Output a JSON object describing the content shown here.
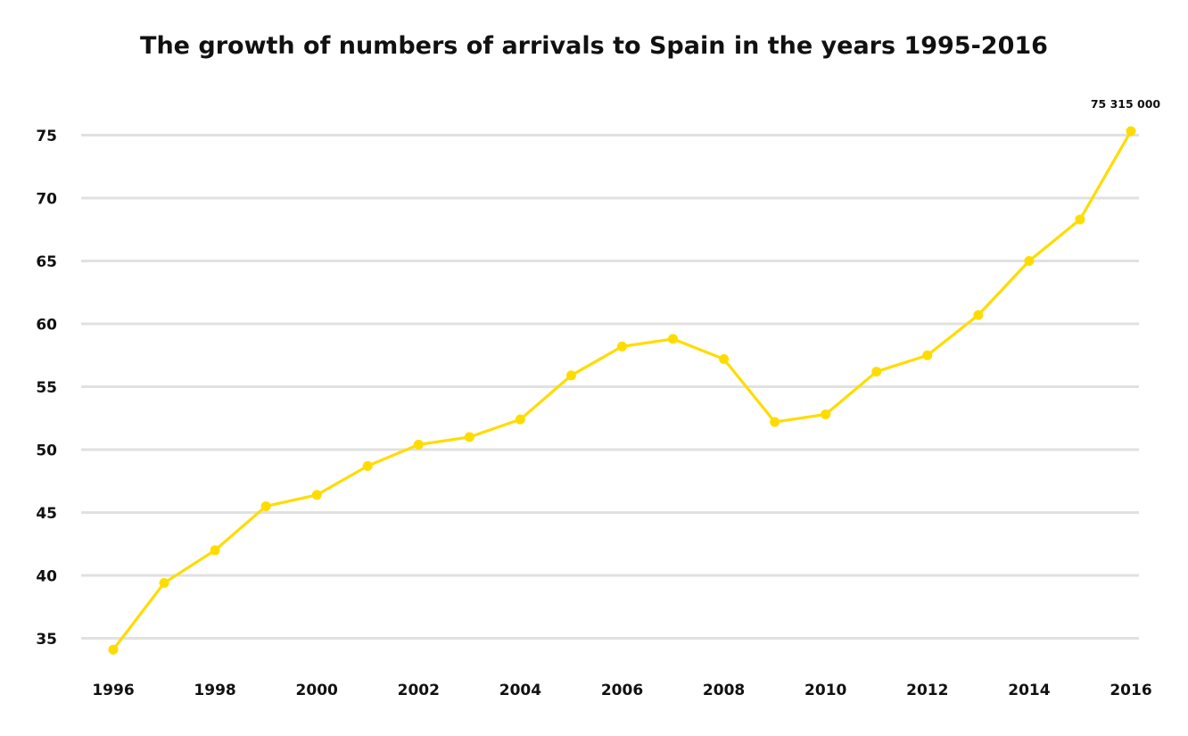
{
  "chart_data": {
    "type": "line",
    "title": "The growth of numbers of arrivals to Spain in the years 1995-2016",
    "xlabel": "",
    "ylabel": "",
    "x": [
      1996,
      1997,
      1998,
      1999,
      2000,
      2001,
      2002,
      2003,
      2004,
      2005,
      2006,
      2007,
      2008,
      2009,
      2010,
      2011,
      2012,
      2013,
      2014,
      2015,
      2016
    ],
    "values_millions": [
      34.1,
      39.4,
      42.0,
      45.5,
      46.4,
      48.7,
      50.4,
      51.0,
      52.4,
      55.9,
      58.2,
      58.8,
      57.2,
      52.2,
      52.8,
      56.2,
      57.5,
      60.7,
      65.0,
      68.3,
      75.315
    ],
    "xticks": [
      1996,
      1998,
      2000,
      2002,
      2004,
      2006,
      2008,
      2010,
      2012,
      2014,
      2016
    ],
    "yticks": [
      35,
      40,
      45,
      50,
      55,
      60,
      65,
      70,
      75
    ],
    "ylim": [
      35,
      75
    ],
    "grid": true,
    "legend": false,
    "annotation": {
      "text": "75 315 000",
      "year": 2016,
      "value_millions": 75.315
    },
    "colors": {
      "line": "#FFDC00",
      "marker": "#FFDC00",
      "grid": "#E1E1E1",
      "text": "#111111",
      "background": "#FFFFFF"
    }
  }
}
